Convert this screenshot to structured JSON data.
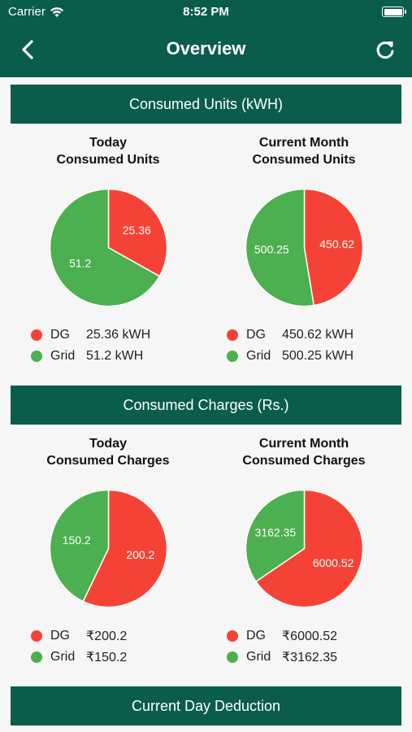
{
  "status_bar": {
    "carrier": "Carrier",
    "time": "8:52 PM"
  },
  "nav": {
    "title": "Overview"
  },
  "colors": {
    "header": "#0a5c4d",
    "dg": "#f44336",
    "grid": "#4caf50"
  },
  "sections": [
    {
      "title": "Consumed Units (kWH)"
    },
    {
      "title": "Consumed Charges (Rs.)"
    },
    {
      "title": "Current Day Deduction"
    }
  ],
  "panels": [
    {
      "title_line1": "Today",
      "title_line2": "Consumed Units",
      "dg_label": "25.36",
      "grid_label": "51.2",
      "dg_name": "DG",
      "grid_name": "Grid",
      "dg_legend_value": "25.36 kWH",
      "grid_legend_value": "51.2 kWH"
    },
    {
      "title_line1": "Current Month",
      "title_line2": "Consumed Units",
      "dg_label": "450.62",
      "grid_label": "500.25",
      "dg_name": "DG",
      "grid_name": "Grid",
      "dg_legend_value": "450.62 kWH",
      "grid_legend_value": "500.25 kWH"
    },
    {
      "title_line1": "Today",
      "title_line2": "Consumed Charges",
      "dg_label": "200.2",
      "grid_label": "150.2",
      "dg_name": "DG",
      "grid_name": "Grid",
      "dg_legend_value": "₹200.2",
      "grid_legend_value": "₹150.2"
    },
    {
      "title_line1": "Current Month",
      "title_line2": "Consumed Charges",
      "dg_label": "6000.52",
      "grid_label": "3162.35",
      "dg_name": "DG",
      "grid_name": "Grid",
      "dg_legend_value": "₹6000.52",
      "grid_legend_value": "₹3162.35"
    }
  ],
  "chart_data": [
    {
      "type": "pie",
      "categories": [
        "DG",
        "Grid"
      ],
      "values": [
        25.36,
        51.2
      ]
    },
    {
      "type": "pie",
      "categories": [
        "DG",
        "Grid"
      ],
      "values": [
        450.62,
        500.25
      ]
    },
    {
      "type": "pie",
      "categories": [
        "DG",
        "Grid"
      ],
      "values": [
        200.2,
        150.2
      ]
    },
    {
      "type": "pie",
      "categories": [
        "DG",
        "Grid"
      ],
      "values": [
        6000.52,
        3162.35
      ]
    }
  ]
}
